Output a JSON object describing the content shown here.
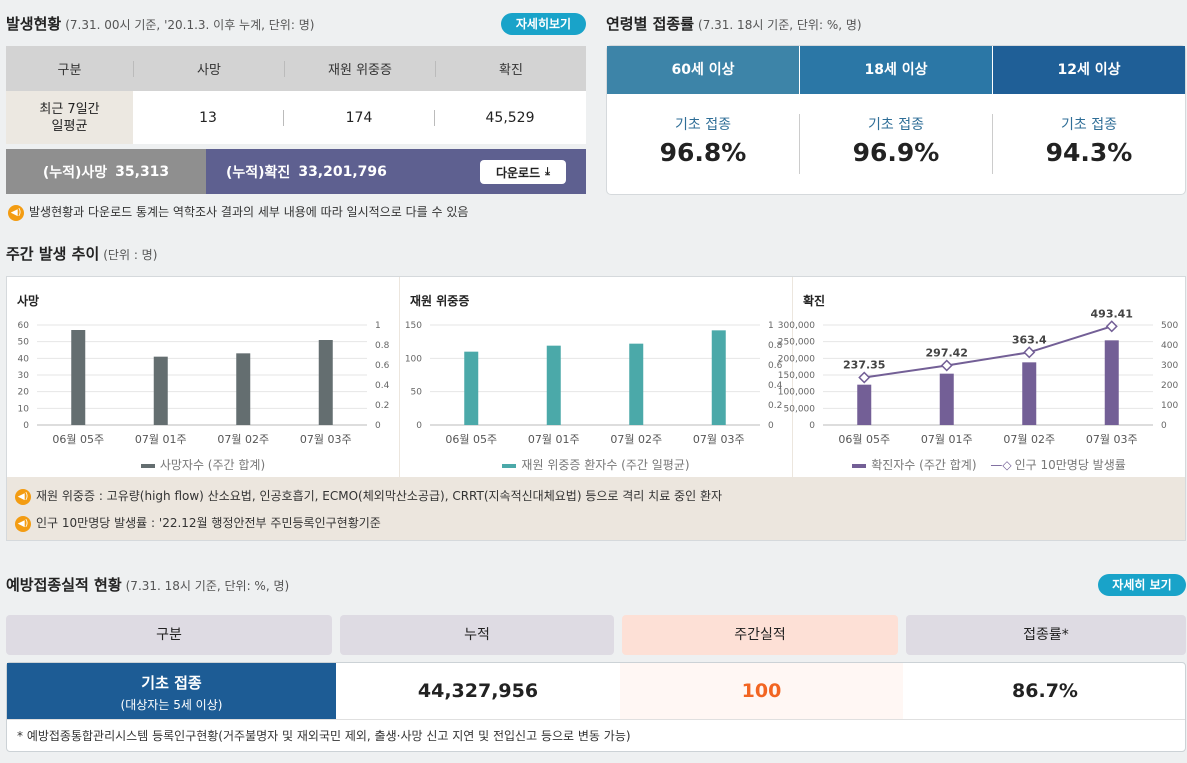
{
  "occurrence": {
    "title": "발생현황",
    "subtitle": "(7.31. 00시 기준, '20.1.3. 이후 누계, 단위: 명)",
    "detail_button": "자세히보기",
    "headers": [
      "구분",
      "사망",
      "재원 위중증",
      "확진"
    ],
    "row_label": "최근 7일간 일평균",
    "row_values": [
      "13",
      "174",
      "45,529"
    ],
    "cum_death_label": "(누적)사망",
    "cum_death_value": "35,313",
    "cum_confirmed_label": "(누적)확진",
    "cum_confirmed_value": "33,201,796",
    "download_label": "다운로드",
    "notice": "발생현황과 다운로드 통계는 역학조사 결과의 세부 내용에 따라 일시적으로 다를 수 있음"
  },
  "age_rate": {
    "title": "연령별 접종률",
    "subtitle": "(7.31. 18시 기준, 단위: %, 명)",
    "groups": [
      {
        "tab": "60세 이상",
        "label": "기초 접종",
        "value": "96.8%",
        "color": "#3d84a8"
      },
      {
        "tab": "18세 이상",
        "label": "기초 접종",
        "value": "96.9%",
        "color": "#2b77a6"
      },
      {
        "tab": "12세 이상",
        "label": "기초 접종",
        "value": "94.3%",
        "color": "#1f5f97"
      }
    ]
  },
  "weekly": {
    "title": "주간 발생 추이",
    "subtitle": "(단위 : 명)"
  },
  "chart_data": [
    {
      "type": "bar",
      "title": "사망",
      "categories": [
        "06월 05주",
        "07월 01주",
        "07월 02주",
        "07월 03주"
      ],
      "series": [
        {
          "name": "사망자수 (주간 합계)",
          "values": [
            57,
            41,
            43,
            51
          ],
          "color": "#646e70"
        }
      ],
      "ylim": [
        0,
        60
      ],
      "yticks": [
        "0",
        "10",
        "20",
        "30",
        "40",
        "50",
        "60"
      ],
      "y2ticks": [
        "0",
        "0.2",
        "0.4",
        "0.6",
        "0.8",
        "1"
      ]
    },
    {
      "type": "bar",
      "title": "재원 위중증",
      "categories": [
        "06월 05주",
        "07월 01주",
        "07월 02주",
        "07월 03주"
      ],
      "series": [
        {
          "name": "재원 위중증 환자수 (주간 일평균)",
          "values": [
            110,
            119,
            122,
            142
          ],
          "color": "#4ba9a9"
        }
      ],
      "ylim": [
        0,
        150
      ],
      "yticks": [
        "0",
        "50",
        "100",
        "150"
      ],
      "y2ticks": [
        "0",
        "0.2",
        "0.4",
        "0.6",
        "0.8",
        "1"
      ]
    },
    {
      "type": "bar",
      "title": "확진",
      "categories": [
        "06월 05주",
        "07월 01주",
        "07월 02주",
        "07월 03주"
      ],
      "series": [
        {
          "name": "확진자수 (주간 합계)",
          "values": [
            121000,
            154000,
            188000,
            254000
          ],
          "color": "#735f96"
        },
        {
          "name": "인구 10만명당 발생률",
          "values": [
            237.35,
            297.42,
            363.4,
            493.41
          ],
          "labels": [
            "237.35",
            "297.42",
            "363.4",
            "493.41"
          ],
          "color": "#735f96"
        }
      ],
      "ylim": [
        0,
        300000
      ],
      "y2lim": [
        0,
        500
      ],
      "yticks": [
        "0",
        "50,000",
        "100,000",
        "150,000",
        "200,000",
        "250,000",
        "300,000"
      ],
      "y2ticks": [
        "0",
        "100",
        "200",
        "300",
        "400",
        "500"
      ]
    }
  ],
  "chart_notes": [
    "재원 위중증 : 고유량(high flow) 산소요법, 인공호흡기, ECMO(체외막산소공급), CRRT(지속적신대체요법) 등으로 격리 치료 중인 환자",
    "인구 10만명당 발생률 : '22.12월 행정안전부 주민등록인구현황기준"
  ],
  "vaccination": {
    "title": "예방접종실적 현황",
    "subtitle": "(7.31. 18시 기준, 단위: %, 명)",
    "detail_button": "자세히 보기",
    "headers": [
      "구분",
      "누적",
      "주간실적",
      "접종률*"
    ],
    "row_label": "기초 접종",
    "row_sublabel": "(대상자는 5세 이상)",
    "cumulative": "44,327,956",
    "weekly": "100",
    "rate": "86.7%",
    "footnote": "* 예방접종통합관리시스템 등록인구현황(거주불명자 및 재외국민 제외, 출생·사망 신고 지연 및 전입신고 등으로 변동 가능)"
  }
}
